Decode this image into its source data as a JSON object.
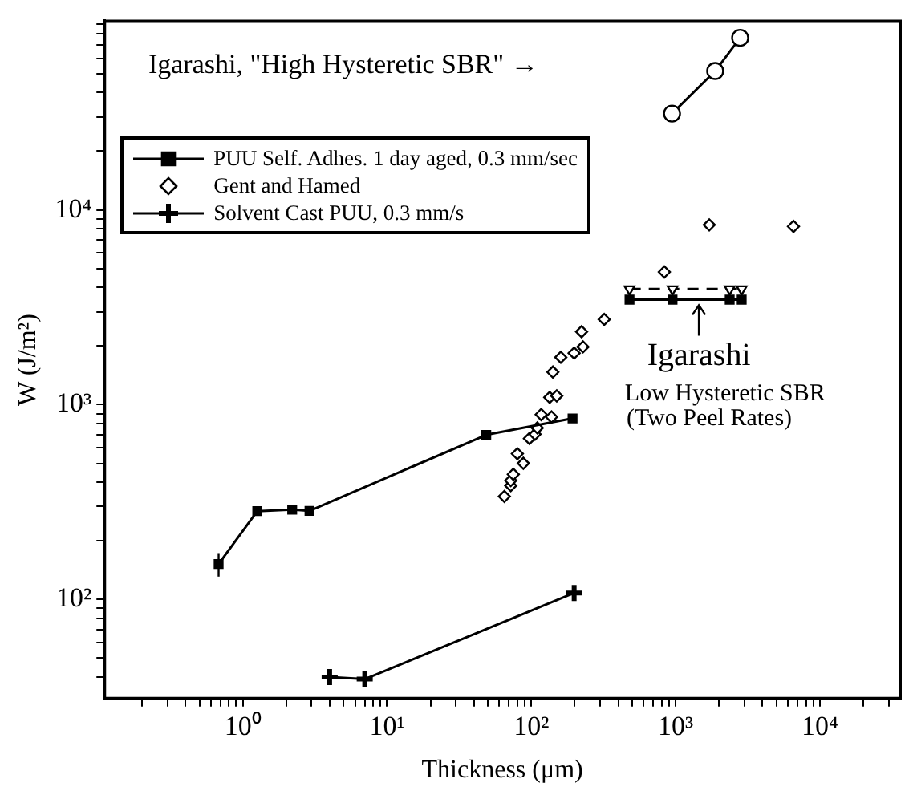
{
  "chart_data": {
    "type": "line",
    "xlabel": "Thickness (μm)",
    "ylabel": "W (J/m²)",
    "log": "xy",
    "grid": false,
    "legend": "top left",
    "xlim": [
      0.11,
      36000
    ],
    "ylim": [
      31,
      93000
    ],
    "xticks": [
      {
        "value": 0.2,
        "label": null
      },
      {
        "value": 0.3,
        "label": null
      },
      {
        "value": 0.4,
        "label": null
      },
      {
        "value": 0.5,
        "label": null
      },
      {
        "value": 0.6,
        "label": null
      },
      {
        "value": 0.7,
        "label": null
      },
      {
        "value": 0.8,
        "label": null
      },
      {
        "value": 0.9,
        "label": null
      },
      {
        "value": 1,
        "label": "10⁰"
      },
      {
        "value": 2,
        "label": null
      },
      {
        "value": 3,
        "label": null
      },
      {
        "value": 4,
        "label": null
      },
      {
        "value": 5,
        "label": null
      },
      {
        "value": 6,
        "label": null
      },
      {
        "value": 7,
        "label": null
      },
      {
        "value": 8,
        "label": null
      },
      {
        "value": 9,
        "label": null
      },
      {
        "value": 10,
        "label": "10¹"
      },
      {
        "value": 20,
        "label": null
      },
      {
        "value": 30,
        "label": null
      },
      {
        "value": 40,
        "label": null
      },
      {
        "value": 50,
        "label": null
      },
      {
        "value": 60,
        "label": null
      },
      {
        "value": 70,
        "label": null
      },
      {
        "value": 80,
        "label": null
      },
      {
        "value": 90,
        "label": null
      },
      {
        "value": 100,
        "label": "10²"
      },
      {
        "value": 200,
        "label": null
      },
      {
        "value": 300,
        "label": null
      },
      {
        "value": 400,
        "label": null
      },
      {
        "value": 500,
        "label": null
      },
      {
        "value": 600,
        "label": null
      },
      {
        "value": 700,
        "label": null
      },
      {
        "value": 800,
        "label": null
      },
      {
        "value": 900,
        "label": null
      },
      {
        "value": 1000,
        "label": "10³"
      },
      {
        "value": 2000,
        "label": null
      },
      {
        "value": 3000,
        "label": null
      },
      {
        "value": 4000,
        "label": null
      },
      {
        "value": 5000,
        "label": null
      },
      {
        "value": 6000,
        "label": null
      },
      {
        "value": 7000,
        "label": null
      },
      {
        "value": 8000,
        "label": null
      },
      {
        "value": 9000,
        "label": null
      },
      {
        "value": 10000,
        "label": "10⁴"
      },
      {
        "value": 20000,
        "label": null
      },
      {
        "value": 30000,
        "label": null
      }
    ],
    "yticks": [
      {
        "value": 40,
        "label": null
      },
      {
        "value": 50,
        "label": null
      },
      {
        "value": 60,
        "label": null
      },
      {
        "value": 70,
        "label": null
      },
      {
        "value": 80,
        "label": null
      },
      {
        "value": 90,
        "label": null
      },
      {
        "value": 100,
        "label": "10²"
      },
      {
        "value": 200,
        "label": null
      },
      {
        "value": 300,
        "label": null
      },
      {
        "value": 400,
        "label": null
      },
      {
        "value": 500,
        "label": null
      },
      {
        "value": 600,
        "label": null
      },
      {
        "value": 700,
        "label": null
      },
      {
        "value": 800,
        "label": null
      },
      {
        "value": 900,
        "label": null
      },
      {
        "value": 1000,
        "label": "10³"
      },
      {
        "value": 2000,
        "label": null
      },
      {
        "value": 3000,
        "label": null
      },
      {
        "value": 4000,
        "label": null
      },
      {
        "value": 5000,
        "label": null
      },
      {
        "value": 6000,
        "label": null
      },
      {
        "value": 7000,
        "label": null
      },
      {
        "value": 8000,
        "label": null
      },
      {
        "value": 9000,
        "label": null
      },
      {
        "value": 10000,
        "label": "10⁴"
      },
      {
        "value": 20000,
        "label": null
      },
      {
        "value": 30000,
        "label": null
      },
      {
        "value": 40000,
        "label": null
      },
      {
        "value": 50000,
        "label": null
      },
      {
        "value": 60000,
        "label": null
      },
      {
        "value": 70000,
        "label": null
      },
      {
        "value": 80000,
        "label": null
      },
      {
        "value": 90000,
        "label": null
      }
    ],
    "series": [
      {
        "name": "PUU Self. Adhes. 1 day aged, 0.3 mm/sec",
        "marker": "square",
        "line_style": "solid",
        "color": "#000000",
        "x": [
          0.68,
          1.26,
          2.2,
          2.9,
          48.7,
          193
        ],
        "values": [
          152,
          284,
          289,
          285,
          700,
          850
        ],
        "errors": [
          [
            131,
            173
          ],
          null,
          null,
          null,
          null,
          null
        ]
      },
      {
        "name": "Gent and Hamed",
        "type": "scatter",
        "marker": "diamond",
        "color": "#000000",
        "x": [
          65,
          72,
          72,
          75,
          80,
          88,
          97,
          106,
          110,
          117,
          138,
          134,
          150,
          141,
          160,
          198,
          228,
          223,
          320,
          835,
          1710,
          6560
        ],
        "values": [
          338,
          384,
          408,
          439,
          560,
          500,
          670,
          705,
          760,
          890,
          865,
          1090,
          1110,
          1470,
          1750,
          1840,
          1980,
          2370,
          2740,
          4800,
          8370,
          8220
        ]
      },
      {
        "name": "Solvent Cast PUU, 0.3 mm/s",
        "marker": "cross",
        "line_style": "solid",
        "color": "#000000",
        "x": [
          4.0,
          7.0,
          198
        ],
        "values": [
          40,
          39,
          108
        ]
      },
      {
        "marker": "circle",
        "line_style": "solid",
        "color": "#000000",
        "x": [
          944,
          1880,
          2800
        ],
        "values": [
          31200,
          51600,
          76400
        ]
      },
      {
        "marker": "triangle",
        "line_style": "dashed",
        "color": "#000000",
        "x": [
          479,
          952,
          2370,
          2870
        ],
        "values": [
          3920,
          3920,
          3920,
          3920
        ]
      },
      {
        "marker": "square",
        "line_style": "solid",
        "color": "#000000",
        "x": [
          479,
          952,
          2370,
          2870
        ],
        "values": [
          3460,
          3460,
          3460,
          3460
        ]
      }
    ],
    "annotations": [
      "Igarashi, \"High Hysteretic SBR\" →",
      "Igarashi",
      "Low Hysteretic SBR",
      "(Two Peel Rates)"
    ]
  }
}
